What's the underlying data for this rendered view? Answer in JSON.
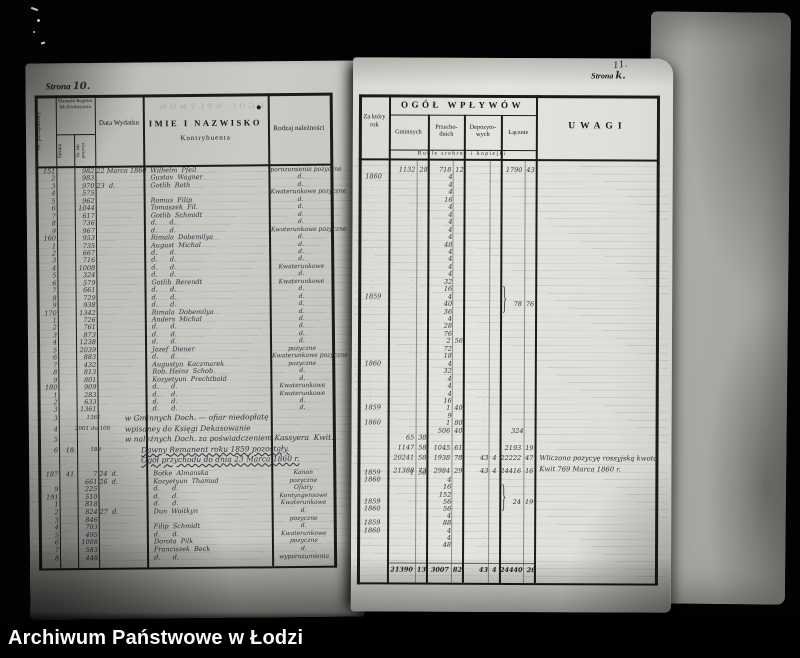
{
  "caption": "Archiwum Państwowe w Łodzi",
  "left_page": {
    "page_label_printed": "Strona",
    "page_label_number": "10.",
    "header": {
      "col_nr": "Nr. porządkowy",
      "col_manual": "Manuału Registru lub Kwitaryusza",
      "col_strona": "Strona",
      "col_pozycya": "Nr. lub pozycya",
      "col_data": "Data Wydatku",
      "col_imie1": "IMIE I NAZWISKO",
      "col_imie2": "Kontrybuenta",
      "col_rodzaj": "Rodzaj należności"
    },
    "rows": [
      {
        "nr": "151",
        "poz": "982",
        "data": "22 Marca 1860",
        "name": "Wilhelm  Pfeil",
        "rodzaj": "porozumienia pozyczne"
      },
      {
        "nr": "2",
        "poz": "983",
        "name": "Gustav  Wagner",
        "rodzaj": "d."
      },
      {
        "nr": "3",
        "poz": "970",
        "data": "23  d.",
        "name": "Gotlib  Roth",
        "rodzaj": "d."
      },
      {
        "nr": "4",
        "poz": "575",
        "name": "",
        "rodzaj": "Kwaterunkowe pozyczne"
      },
      {
        "nr": "5",
        "poz": "962",
        "name": "Romus  Filip",
        "rodzaj": "d."
      },
      {
        "nr": "6",
        "poz": "1044",
        "name": "Tomaszek  Fil.",
        "rodzaj": "d."
      },
      {
        "nr": "7",
        "poz": "617",
        "name": "Gotlib  Schmidt",
        "rodzaj": "d."
      },
      {
        "nr": "8",
        "poz": "736",
        "name": "d.      d.",
        "rodzaj": "d."
      },
      {
        "nr": "9",
        "poz": "967",
        "name": "d.      d.",
        "rodzaj": "Kwaterunkowe pozyczne"
      },
      {
        "nr": "160",
        "poz": "953",
        "name": "Rimala  Dobemilya",
        "rodzaj": "d."
      },
      {
        "nr": "1",
        "poz": "735",
        "name": "August  Michal",
        "rodzaj": "d."
      },
      {
        "nr": "2",
        "poz": "667",
        "name": "d.      d.",
        "rodzaj": "d."
      },
      {
        "nr": "3",
        "poz": "716",
        "name": "d.      d.",
        "rodzaj": "d."
      },
      {
        "nr": "4",
        "poz": "1008",
        "name": "d.      d.",
        "rodzaj": "Kwaterunkowe"
      },
      {
        "nr": "5",
        "poz": "324",
        "name": "d.      d.",
        "rodzaj": "d."
      },
      {
        "nr": "6",
        "poz": "579",
        "name": "Gotlib  Berendt",
        "rodzaj": "Kwaterunkowe"
      },
      {
        "nr": "7",
        "poz": "661",
        "name": "d.      d.",
        "rodzaj": "d."
      },
      {
        "nr": "8",
        "poz": "729",
        "name": "d.      d.",
        "rodzaj": "d."
      },
      {
        "nr": "9",
        "poz": "938",
        "name": "d.      d.",
        "rodzaj": "d."
      },
      {
        "nr": "170",
        "poz": "1342",
        "name": "Rimala  Dobemilya",
        "rodzaj": "d."
      },
      {
        "nr": "1",
        "poz": "726",
        "name": "Anders  Michal",
        "rodzaj": "d."
      },
      {
        "nr": "2",
        "poz": "761",
        "name": "d.      d.",
        "rodzaj": "d."
      },
      {
        "nr": "3",
        "poz": "873",
        "name": "d.      d.",
        "rodzaj": "d."
      },
      {
        "nr": "4",
        "poz": "1238",
        "name": "d.      d.",
        "rodzaj": "d."
      },
      {
        "nr": "5",
        "poz": "2039",
        "name": "Jozef  Diener",
        "rodzaj": "pozyczne"
      },
      {
        "nr": "6",
        "poz": "883",
        "name": "d.      d.",
        "rodzaj": "Kwaterunkowe pozyczne"
      },
      {
        "nr": "7",
        "poz": "432",
        "name": "Augustyn  Kaczmarek",
        "rodzaj": "pozyczne"
      },
      {
        "nr": "8",
        "poz": "813",
        "name": "Rob. Heinz  Schob.",
        "rodzaj": "d."
      },
      {
        "nr": "9",
        "poz": "801",
        "name": "Kozyetyun  Prechtbold",
        "rodzaj": "d."
      },
      {
        "nr": "180",
        "poz": "909",
        "name": "d.      d.",
        "rodzaj": "Kwaterunkowe"
      },
      {
        "nr": "1",
        "poz": "283",
        "name": "d.      d.",
        "rodzaj": "Kwaterunkowe"
      },
      {
        "nr": "2",
        "poz": "633",
        "name": "d.      d.",
        "rodzaj": "d."
      },
      {
        "nr": "3",
        "poz": "1361",
        "name": "d.      d.",
        "rodzaj": "d."
      }
    ],
    "summary_lines": [
      {
        "nr": "3",
        "strona": "",
        "poz": "1361",
        "text": "w Gminnych Doch. — ofiar niedopłatę"
      },
      {
        "nr": "4",
        "strona": "",
        "poz": "2001 do 100",
        "text": "wpisaney do Księgi Dekasowanie"
      },
      {
        "nr": "5",
        "strona": "",
        "poz": "",
        "text": "w należnych Doch. za poświadczeniem Kassyera  Kwit."
      },
      {
        "nr": "6",
        "strona": "18.",
        "poz": "189",
        "text": "Dawny Remanent roku 1859 pozostały."
      },
      {
        "nr": "",
        "strona": "",
        "poz": "",
        "text": "Ogół przychodu do dnia 23 Marca 1860 r."
      }
    ],
    "rows2": [
      {
        "nr": "187",
        "strona": "41.",
        "poz": "7",
        "data": "24  d.",
        "name": "Botke  Almanska",
        "rodzaj": "Kanon"
      },
      {
        "nr": "",
        "strona": "",
        "poz": "661",
        "data": "26  d.",
        "name": "Kozyetyun  Thamud",
        "rodzaj": "pozyczne"
      },
      {
        "nr": "9",
        "strona": "",
        "poz": "225",
        "name": "d.      d.",
        "rodzaj": "Ofiary"
      },
      {
        "nr": "191",
        "strona": "",
        "poz": "510",
        "name": "d.      d.",
        "rodzaj": "Kontyngensowe"
      },
      {
        "nr": "1",
        "strona": "",
        "poz": "818",
        "name": "d.      d.",
        "rodzaj": "Kwaterunkowe"
      },
      {
        "nr": "2",
        "strona": "",
        "poz": "824",
        "data": "27  d.",
        "name": "Dun  Woitkyn",
        "rodzaj": "d."
      },
      {
        "nr": "3",
        "strona": "",
        "poz": "846",
        "name": "",
        "rodzaj": "pozyczne"
      },
      {
        "nr": "4",
        "strona": "",
        "poz": "703",
        "name": "Filip  Schmidt",
        "rodzaj": "d."
      },
      {
        "nr": "5",
        "strona": "",
        "poz": "495",
        "name": "d.      d.",
        "rodzaj": "Kwaterunkowe"
      },
      {
        "nr": "6",
        "strona": "",
        "poz": "1008",
        "name": "Dorota  Pilk",
        "rodzaj": "pozyczne"
      },
      {
        "nr": "7",
        "strona": "",
        "poz": "583",
        "name": "Franciszek  Beck",
        "rodzaj": "d."
      },
      {
        "nr": "8",
        "strona": "",
        "poz": "448",
        "name": "d.      d.",
        "rodzaj": "wyporozumienia"
      }
    ]
  },
  "right_page": {
    "page_label_hand": "11.",
    "page_label_printed": "Strona",
    "page_label_flourish": "k.",
    "header": {
      "col_rok": "Za który rok",
      "group": "OGÓŁ WPŁYWÓW",
      "col_gm": "Gminnych",
      "col_prz": "Przecho-dnich",
      "col_dep": "Depozyto-wych",
      "col_lacz": "Łącznie",
      "strip": "Ruble srebrne i kopiejki",
      "col_uwagi": "UWAGI"
    },
    "rows": [
      {
        "gm": "1132 28",
        "prz": "718 12",
        "lacz": "1790 43",
        "nodots": true
      },
      {
        "rok": "1860",
        "prz": "4"
      },
      {
        "prz": "4"
      },
      {
        "prz": "4"
      },
      {
        "prz": "16"
      },
      {
        "prz": "4"
      },
      {
        "prz": "4"
      },
      {
        "prz": "4"
      },
      {
        "prz": "4"
      },
      {
        "prz": "4"
      },
      {
        "prz": "48"
      },
      {
        "prz": "4"
      },
      {
        "prz": "4"
      },
      {
        "prz": "4"
      },
      {
        "prz": "4"
      },
      {
        "prz": "32"
      },
      {
        "prz": "16"
      },
      {
        "rok": "1859",
        "prz": "4"
      },
      {
        "prz": "40",
        "lacz": "78 76",
        "br": true
      },
      {
        "prz": "36"
      },
      {
        "prz": "4"
      },
      {
        "prz": "28"
      },
      {
        "prz": "76"
      },
      {
        "prz": "2 56"
      },
      {
        "prz": "72"
      },
      {
        "prz": "18"
      },
      {
        "rok": "1860",
        "prz": "4"
      },
      {
        "prz": "32"
      },
      {
        "prz": "4"
      },
      {
        "prz": "4"
      },
      {
        "prz": "4"
      },
      {
        "prz": "16"
      },
      {
        "rok": "1859",
        "prz": "1 40"
      },
      {
        "prz": "9"
      },
      {
        "rok": "1860",
        "prz": "1 80"
      },
      {
        "prz": "506 40",
        "lacz": "324"
      }
    ],
    "summary_rows": [
      {
        "gm": "65 38"
      },
      {
        "gm": "1147 58",
        "prz": "1045 61",
        "lacz": "2193 19"
      },
      {
        "gm": "20241 58",
        "prz": "1938 78",
        "dep": "43 4",
        "lacz": "22222 47"
      },
      {
        "gm": "21388 73",
        "prz": "2984 29",
        "dep": "43 4",
        "lacz": "24416 16"
      }
    ],
    "uwagi_note": [
      "Wliczono pozycyę rossyjską kwotą",
      "Kwit 769 Marca 1860 r."
    ],
    "rows2": [
      {
        "rok": "1859",
        "gm": "1 50"
      },
      {
        "rok": "1860",
        "prz": "4"
      },
      {
        "prz": "16"
      },
      {
        "prz": "152"
      },
      {
        "rok": "1859",
        "prz": "56",
        "lacz": "24 19",
        "br": true
      },
      {
        "rok": "1860",
        "prz": "56"
      },
      {
        "prz": "4"
      },
      {
        "rok": "1859",
        "prz": "88"
      },
      {
        "rok": "1860",
        "prz": "4"
      },
      {
        "prz": "4"
      },
      {
        "prz": "48"
      }
    ],
    "total_row": {
      "gm": "21390 13",
      "prz": "3007 82",
      "dep": "43 4",
      "lacz": "24440 26"
    }
  }
}
